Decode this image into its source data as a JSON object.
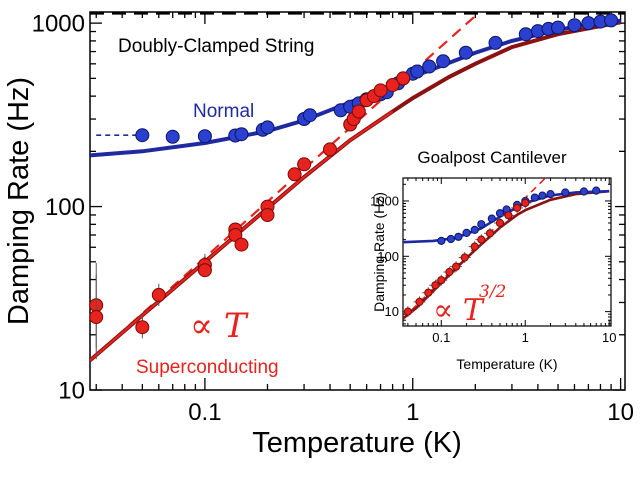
{
  "chart_data": [
    {
      "type": "scatter",
      "xlabel": "Temperature (K)",
      "ylabel": "Damping Rate (Hz)",
      "xscale": "log",
      "yscale": "log",
      "xlim": [
        0.028,
        10.5
      ],
      "ylim": [
        10,
        1150
      ],
      "xticks": [
        {
          "v": 0.1,
          "label": "0.1"
        },
        {
          "v": 1,
          "label": "1"
        },
        {
          "v": 10,
          "label": "10"
        }
      ],
      "yticks": [
        {
          "v": 10,
          "label": "10"
        },
        {
          "v": 100,
          "label": "100"
        },
        {
          "v": 1000,
          "label": "1000"
        }
      ],
      "annotations": {
        "panel_label": "Doubly-Clamped String",
        "normal_label": "Normal",
        "sc_label": "Superconducting",
        "prop_t": "∝ T"
      },
      "colors": {
        "normal": "#1f2aa0",
        "normal_point": "#2b3fd0",
        "sc": "#e8221c",
        "sc_dark": "#8b1212",
        "limit": "#000000"
      },
      "limit_line": 1130,
      "normal_plateau": 245,
      "series": [
        {
          "name": "Normal",
          "points": [
            [
              0.05,
              245
            ],
            [
              0.07,
              240
            ],
            [
              0.1,
              242
            ],
            [
              0.14,
              244
            ],
            [
              0.15,
              248
            ],
            [
              0.19,
              262
            ],
            [
              0.2,
              270
            ],
            [
              0.3,
              300
            ],
            [
              0.32,
              315
            ],
            [
              0.45,
              335
            ],
            [
              0.5,
              350
            ],
            [
              0.55,
              365
            ],
            [
              0.6,
              385
            ],
            [
              0.7,
              410
            ],
            [
              0.75,
              420
            ],
            [
              0.85,
              470
            ],
            [
              0.9,
              500
            ],
            [
              1.0,
              530
            ],
            [
              1.05,
              545
            ],
            [
              1.2,
              580
            ],
            [
              1.4,
              620
            ],
            [
              1.8,
              690
            ],
            [
              2.5,
              780
            ],
            [
              3.5,
              870
            ],
            [
              4.0,
              905
            ],
            [
              4.5,
              930
            ],
            [
              5.0,
              945
            ],
            [
              6.0,
              975
            ],
            [
              7.0,
              1000
            ],
            [
              8.0,
              1020
            ],
            [
              9.0,
              1035
            ]
          ]
        },
        {
          "name": "Superconducting",
          "points": [
            [
              0.03,
              29
            ],
            [
              0.03,
              25
            ],
            [
              0.05,
              22
            ],
            [
              0.06,
              33
            ],
            [
              0.1,
              48
            ],
            [
              0.1,
              45
            ],
            [
              0.14,
              75
            ],
            [
              0.14,
              70
            ],
            [
              0.15,
              62
            ],
            [
              0.2,
              100
            ],
            [
              0.2,
              90
            ],
            [
              0.27,
              150
            ],
            [
              0.3,
              170
            ],
            [
              0.4,
              205
            ],
            [
              0.5,
              280
            ],
            [
              0.52,
              300
            ],
            [
              0.55,
              330
            ],
            [
              0.6,
              380
            ],
            [
              0.65,
              400
            ],
            [
              0.7,
              430
            ],
            [
              0.8,
              460
            ],
            [
              0.9,
              500
            ]
          ]
        }
      ],
      "fits": {
        "normal": [
          [
            0.028,
            190
          ],
          [
            0.05,
            200
          ],
          [
            0.1,
            222
          ],
          [
            0.2,
            258
          ],
          [
            0.3,
            295
          ],
          [
            0.5,
            370
          ],
          [
            1.0,
            510
          ],
          [
            2.0,
            690
          ],
          [
            3.0,
            800
          ],
          [
            5.0,
            920
          ],
          [
            7.0,
            985
          ],
          [
            10.0,
            1030
          ]
        ],
        "sc": [
          [
            0.028,
            14.5
          ],
          [
            0.05,
            25.5
          ],
          [
            0.1,
            50
          ],
          [
            0.2,
            98
          ],
          [
            0.3,
            145
          ],
          [
            0.5,
            230
          ],
          [
            0.8,
            330
          ],
          [
            1.0,
            390
          ],
          [
            1.5,
            510
          ],
          [
            2.0,
            600
          ],
          [
            3.0,
            740
          ],
          [
            5.0,
            870
          ],
          [
            10.0,
            1010
          ]
        ],
        "linear": [
          [
            0.028,
            14.5
          ],
          [
            2.1,
            1150
          ]
        ]
      }
    },
    {
      "type": "scatter",
      "title": "Goalpost Cantilever",
      "xlabel": "Temperature (K)",
      "ylabel": "Damping Rate (Hz)",
      "xscale": "log",
      "yscale": "log",
      "xlim": [
        0.035,
        10.5
      ],
      "ylim": [
        5.5,
        2600
      ],
      "xticks": [
        {
          "v": 0.1,
          "label": "0.1"
        },
        {
          "v": 1,
          "label": "1"
        },
        {
          "v": 10,
          "label": "10"
        }
      ],
      "yticks": [
        {
          "v": 10,
          "label": "10"
        },
        {
          "v": 100,
          "label": "100"
        },
        {
          "v": 1000,
          "label": "1000"
        }
      ],
      "annotations": {
        "prop_t": "∝ T",
        "prop_exp": "3/2"
      },
      "series": [
        {
          "name": "Normal",
          "points": [
            [
              0.1,
              190
            ],
            [
              0.13,
              205
            ],
            [
              0.16,
              225
            ],
            [
              0.2,
              265
            ],
            [
              0.25,
              300
            ],
            [
              0.3,
              380
            ],
            [
              0.4,
              480
            ],
            [
              0.5,
              600
            ],
            [
              0.6,
              700
            ],
            [
              0.8,
              850
            ],
            [
              1.0,
              1000
            ],
            [
              1.3,
              1150
            ],
            [
              1.6,
              1250
            ],
            [
              2.0,
              1330
            ],
            [
              3.0,
              1420
            ],
            [
              5.0,
              1480
            ],
            [
              7.0,
              1540
            ]
          ]
        },
        {
          "name": "Superconducting",
          "points": [
            [
              0.04,
              10
            ],
            [
              0.055,
              15
            ],
            [
              0.07,
              22
            ],
            [
              0.085,
              30
            ],
            [
              0.1,
              37
            ],
            [
              0.125,
              52
            ],
            [
              0.15,
              65
            ],
            [
              0.19,
              95
            ],
            [
              0.25,
              150
            ],
            [
              0.3,
              200
            ],
            [
              0.38,
              260
            ],
            [
              0.5,
              400
            ],
            [
              0.63,
              550
            ],
            [
              0.8,
              750
            ],
            [
              1.0,
              920
            ]
          ]
        }
      ],
      "fits": {
        "normal": [
          [
            0.035,
            180
          ],
          [
            0.08,
            190
          ],
          [
            0.15,
            215
          ],
          [
            0.3,
            320
          ],
          [
            0.5,
            520
          ],
          [
            1.0,
            920
          ],
          [
            2.0,
            1260
          ],
          [
            4.0,
            1430
          ],
          [
            10.0,
            1500
          ]
        ],
        "sc": [
          [
            0.035,
            7.5
          ],
          [
            0.05,
            11.5
          ],
          [
            0.1,
            33
          ],
          [
            0.2,
            93
          ],
          [
            0.3,
            165
          ],
          [
            0.5,
            330
          ],
          [
            0.8,
            560
          ],
          [
            1.0,
            680
          ],
          [
            2.0,
            1050
          ],
          [
            4.0,
            1330
          ],
          [
            10.0,
            1500
          ]
        ],
        "power": [
          [
            0.035,
            7.5
          ],
          [
            2.2,
            3700
          ]
        ]
      }
    }
  ]
}
